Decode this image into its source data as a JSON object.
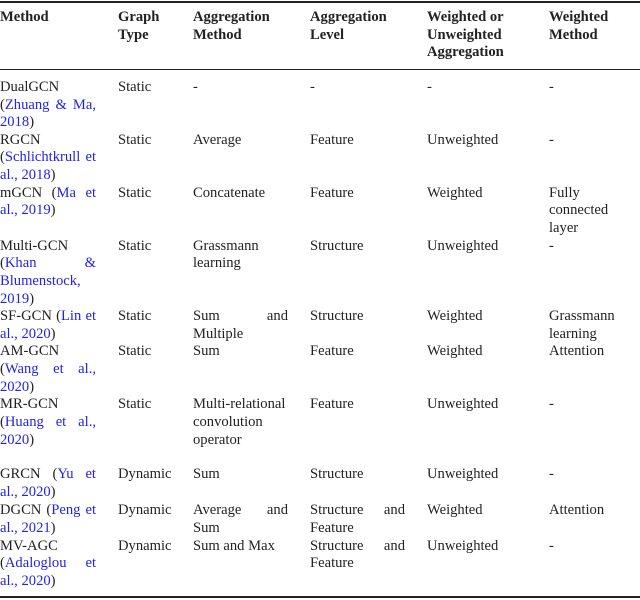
{
  "headers": [
    "Method",
    "Graph Type",
    "Aggregation Method",
    "Aggregation Level",
    "Weighted or Unweighted Aggregation",
    "Weighted Method"
  ],
  "rows": [
    {
      "name": "DualGCN",
      "cite": "Zhuang & Ma, 2018",
      "graph_type": "Static",
      "agg_method": "-",
      "agg_level": "-",
      "weighted": "-",
      "weighted_method": "-",
      "h": 53
    },
    {
      "name": "RGCN",
      "cite": "Schlichtkrull et al., 2018",
      "graph_type": "Static",
      "agg_method": "Average",
      "agg_level": "Feature",
      "weighted": "Unweighted",
      "weighted_method": "-",
      "h": 53
    },
    {
      "name": "mGCN",
      "cite": "Ma et al., 2019",
      "graph_type": "Static",
      "agg_method": "Concatenate",
      "agg_level": "Feature",
      "weighted": "Weighted",
      "weighted_method": "Fully connected layer",
      "h": 53
    },
    {
      "name": "Multi-GCN",
      "cite": "Khan & Blumenstock, 2019",
      "graph_type": "Static",
      "agg_method": "Grassmann learning",
      "agg_level": "Structure",
      "weighted": "Unweighted",
      "weighted_method": "-",
      "h": 70
    },
    {
      "name": "SF-GCN",
      "cite": "Lin et al., 2020",
      "graph_type": "Static",
      "agg_method": "Sum and Multiple",
      "agg_level": "Structure",
      "weighted": "Weighted",
      "weighted_method": "Grassmann learning",
      "h": 35
    },
    {
      "name": "AM-GCN",
      "cite": "Wang et al., 2020",
      "graph_type": "Static",
      "agg_method": "Sum",
      "agg_level": "Feature",
      "weighted": "Weighted",
      "weighted_method": "Attention",
      "h": 53
    },
    {
      "name": "MR-GCN",
      "cite": "Huang et al., 2020",
      "graph_type": "Static",
      "agg_method": "Multi-relational convolution operator",
      "agg_level": "Feature",
      "weighted": "Unweighted",
      "weighted_method": "-",
      "h": 70
    },
    {
      "name": "GRCN",
      "cite": "Yu et al., 2020",
      "graph_type": "Dynamic",
      "agg_method": "Sum",
      "agg_level": "Structure",
      "weighted": "Unweighted",
      "weighted_method": "-",
      "h": 36
    },
    {
      "name": "DGCN",
      "cite": "Peng et al., 2021",
      "graph_type": "Dynamic",
      "agg_method": "Average and Sum",
      "agg_level": "Structure and Feature",
      "weighted": "Weighted",
      "weighted_method": "Attention",
      "h": 35
    },
    {
      "name": "MV-AGC",
      "cite": "Adaloglou et al., 2020",
      "graph_type": "Dynamic",
      "agg_method": "Sum and Max",
      "agg_level": "Structure and Feature",
      "weighted": "Unweighted",
      "weighted_method": "-",
      "h": 58
    }
  ],
  "colors": {
    "citation": "#2222ee",
    "text": "#222222"
  }
}
